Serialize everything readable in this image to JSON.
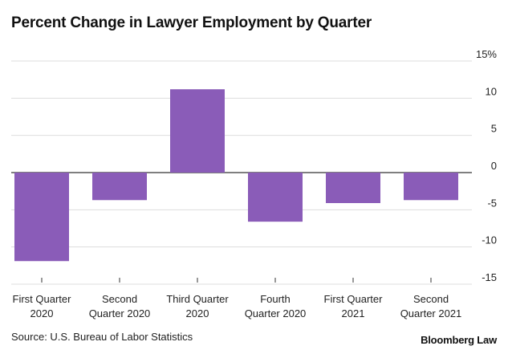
{
  "chart_data": {
    "type": "bar",
    "title": "Percent Change in Lawyer Employment by Quarter",
    "categories": [
      [
        "First Quarter",
        "2020"
      ],
      [
        "Second",
        "Quarter 2020"
      ],
      [
        "Third Quarter",
        "2020"
      ],
      [
        "Fourth",
        "Quarter 2020"
      ],
      [
        "First Quarter",
        "2021"
      ],
      [
        "Second",
        "Quarter 2021"
      ]
    ],
    "values": [
      -11.9,
      -3.7,
      11.2,
      -6.6,
      -4.1,
      -3.7
    ],
    "yticks": [
      "15%",
      "10",
      "5",
      "0",
      "-5",
      "-10",
      "-15"
    ],
    "ylim": [
      -15,
      15
    ],
    "bar_color": "#8a5cb8",
    "grid": true,
    "xlabel": "",
    "ylabel": ""
  },
  "source": "Source: U.S. Bureau of Labor Statistics",
  "brand": "Bloomberg Law"
}
